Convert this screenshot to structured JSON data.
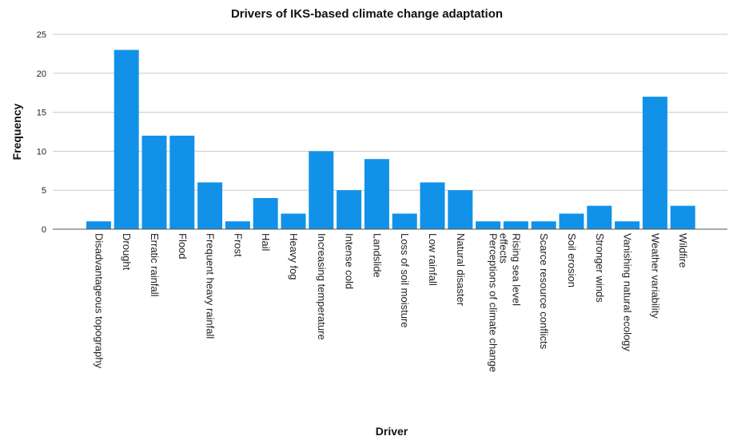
{
  "chart_data": {
    "type": "bar",
    "title": "Drivers of IKS-based climate change adaptation",
    "xlabel": "Driver",
    "ylabel": "Frequency",
    "ylim": [
      0,
      25
    ],
    "yticks": [
      0,
      5,
      10,
      15,
      20,
      25
    ],
    "grid": true,
    "bar_color": "#1192E8",
    "categories": [
      "Disadvantageous topography",
      "Drought",
      "Erratic rainfall",
      "Flood",
      "Frequent heavy rainfall",
      "Frost",
      "Hail",
      "Heavy fog",
      "Increasing temperature",
      "Intense cold",
      "Landslide",
      "Loss of soil moisture",
      "Low rainfall",
      "Natural disaster",
      "Perceptions of climate change effects",
      "Rising sea level",
      "Scarce resource conflicts",
      "Soil erosion",
      "Stronger winds",
      "Vanishing natural ecology",
      "Weather variability",
      "Wildfire"
    ],
    "values": [
      1,
      23,
      12,
      12,
      6,
      1,
      4,
      2,
      10,
      5,
      9,
      2,
      6,
      5,
      1,
      1,
      1,
      2,
      3,
      1,
      17,
      3
    ]
  }
}
